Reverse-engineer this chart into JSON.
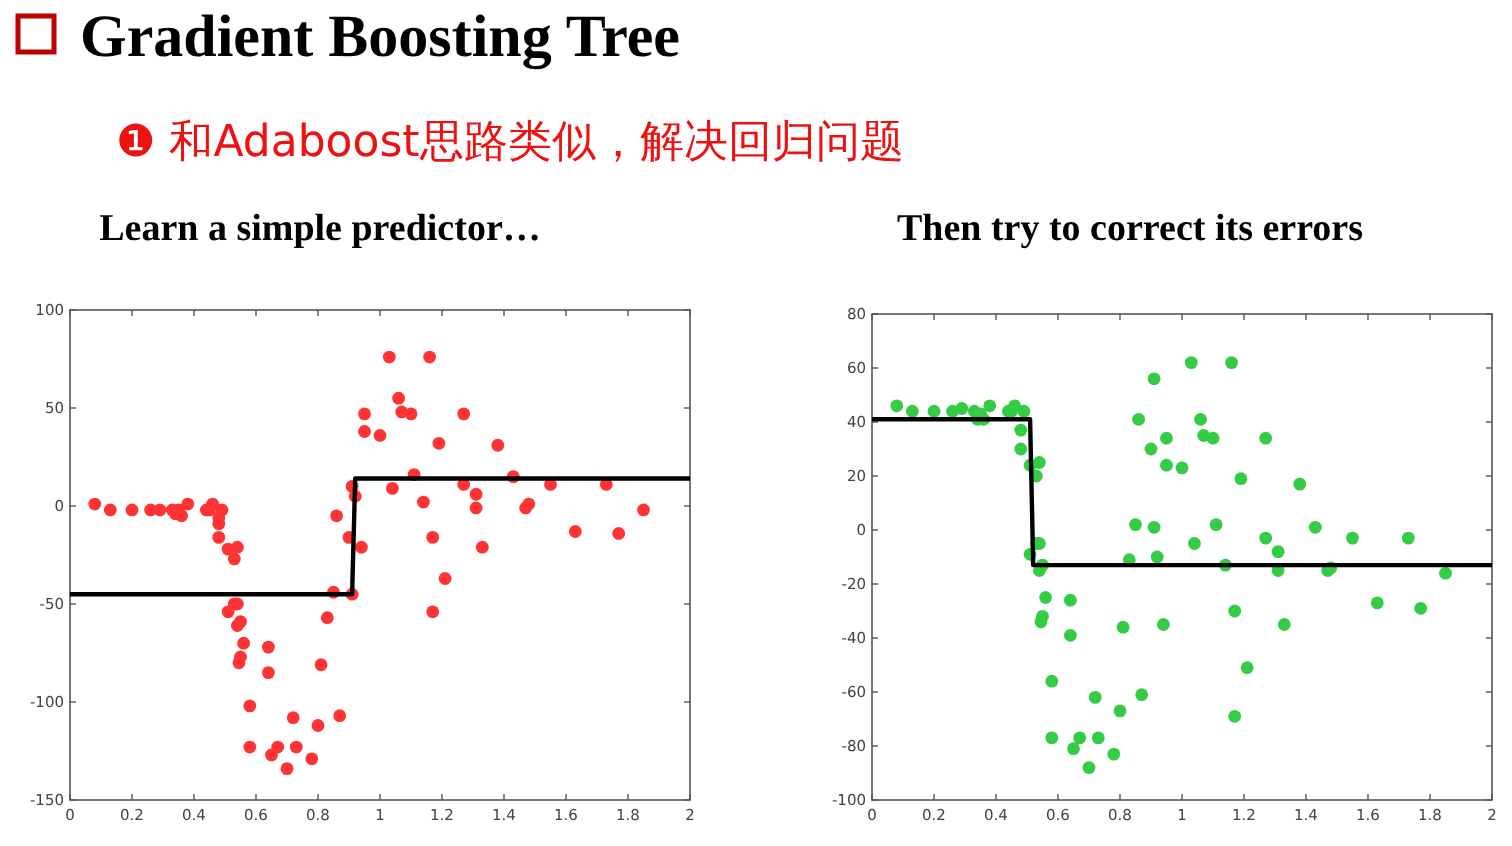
{
  "chart_data": [
    {
      "type": "other",
      "title": "Gradient Boosting Tree",
      "subtitle": "❶ 和Adaboost思路类似，解决回归问题"
    },
    {
      "type": "scatter",
      "title": "Learn a simple predictor…",
      "xlim": [
        0,
        2
      ],
      "xticks": [
        0,
        0.2,
        0.4,
        0.6,
        0.8,
        1,
        1.2,
        1.4,
        1.6,
        1.8,
        2
      ],
      "ylim": [
        -150,
        100
      ],
      "yticks": [
        -150,
        -100,
        -50,
        0,
        50,
        100
      ],
      "grid": false,
      "series": [
        {
          "type": "scatter",
          "marker": "circle",
          "color": "#ff3333",
          "x": [
            0.08,
            0.13,
            0.2,
            0.26,
            0.29,
            0.33,
            0.34,
            0.35,
            0.36,
            0.38,
            0.44,
            0.45,
            0.46,
            0.49,
            0.48,
            0.48,
            0.48,
            0.51,
            0.54,
            0.53,
            0.53,
            0.54,
            0.51,
            0.55,
            0.54,
            0.56,
            0.55,
            0.545,
            0.58,
            0.58,
            0.64,
            0.64,
            0.65,
            0.67,
            0.7,
            0.72,
            0.73,
            0.78,
            0.8,
            0.81,
            0.83,
            0.85,
            0.87,
            0.86,
            0.9,
            0.91,
            0.92,
            0.91,
            0.94,
            0.95,
            0.95,
            1.0,
            1.03,
            1.04,
            1.06,
            1.07,
            1.1,
            1.11,
            1.14,
            1.16,
            1.17,
            1.17,
            1.19,
            1.21,
            1.27,
            1.27,
            1.31,
            1.31,
            1.33,
            1.38,
            1.43,
            1.47,
            1.48,
            1.55,
            1.63,
            1.73,
            1.77,
            1.85
          ],
          "values": [
            1,
            -2,
            -2,
            -2,
            -2,
            -2,
            -4,
            -2,
            -5,
            1,
            -2,
            -2,
            1,
            -2,
            -6,
            -9,
            -16,
            -22,
            -21,
            -27,
            -50,
            -50,
            -54,
            -59,
            -61,
            -70,
            -77,
            -80,
            -102,
            -123,
            -72,
            -85,
            -127,
            -123,
            -134,
            -108,
            -123,
            -129,
            -112,
            -81,
            -57,
            -44,
            -107,
            -5,
            -16,
            10,
            5,
            -45,
            -21,
            38,
            47,
            36,
            76,
            9,
            55,
            48,
            47,
            16,
            2,
            76,
            -16,
            -54,
            32,
            -37,
            47,
            11,
            6,
            -1,
            -21,
            31,
            15,
            -1,
            1,
            11,
            -13,
            11,
            -14,
            -2
          ]
        },
        {
          "type": "line",
          "color": "#000000",
          "x": [
            0,
            0.91,
            0.92,
            2
          ],
          "values": [
            -45,
            -45,
            14,
            14
          ]
        }
      ]
    },
    {
      "type": "scatter",
      "title": "Then try to correct its errors",
      "xlim": [
        0,
        2
      ],
      "xticks": [
        0,
        0.2,
        0.4,
        0.6,
        0.8,
        1,
        1.2,
        1.4,
        1.6,
        1.8,
        2
      ],
      "ylim": [
        -100,
        80
      ],
      "yticks": [
        -100,
        -80,
        -60,
        -40,
        -20,
        0,
        20,
        40,
        60,
        80
      ],
      "grid": false,
      "series": [
        {
          "type": "scatter",
          "marker": "circle",
          "color": "#33cc44",
          "x": [
            0.08,
            0.13,
            0.2,
            0.26,
            0.29,
            0.33,
            0.34,
            0.35,
            0.36,
            0.38,
            0.44,
            0.45,
            0.46,
            0.49,
            0.48,
            0.48,
            0.51,
            0.54,
            0.53,
            0.51,
            0.53,
            0.54,
            0.55,
            0.54,
            0.56,
            0.55,
            0.545,
            0.58,
            0.58,
            0.64,
            0.64,
            0.65,
            0.67,
            0.7,
            0.72,
            0.73,
            0.78,
            0.8,
            0.81,
            0.83,
            0.85,
            0.87,
            0.86,
            0.9,
            0.91,
            0.91,
            0.92,
            0.94,
            0.95,
            0.95,
            1.0,
            1.03,
            1.04,
            1.06,
            1.07,
            1.1,
            1.11,
            1.14,
            1.16,
            1.17,
            1.17,
            1.19,
            1.21,
            1.27,
            1.27,
            1.31,
            1.31,
            1.33,
            1.38,
            1.43,
            1.47,
            1.48,
            1.55,
            1.63,
            1.73,
            1.77,
            1.85
          ],
          "values": [
            46,
            44,
            44,
            44,
            45,
            44,
            41,
            43,
            41,
            46,
            44,
            44,
            46,
            44,
            37,
            30,
            24,
            25,
            20,
            -9,
            -5,
            -5,
            -13,
            -15,
            -25,
            -32,
            -34,
            -56,
            -77,
            -26,
            -39,
            -81,
            -77,
            -88,
            -62,
            -77,
            -83,
            -67,
            -36,
            -11,
            2,
            -61,
            41,
            30,
            56,
            1,
            -10,
            -35,
            24,
            34,
            23,
            62,
            -5,
            41,
            35,
            34,
            2,
            -13,
            62,
            -30,
            -69,
            19,
            -51,
            34,
            -3,
            -8,
            -15,
            -35,
            17,
            1,
            -15,
            -14,
            -3,
            -27,
            -3,
            -29,
            -16
          ]
        },
        {
          "type": "line",
          "color": "#000000",
          "x": [
            0,
            0.51,
            0.52,
            2
          ],
          "values": [
            41,
            41,
            -13,
            -13
          ]
        }
      ]
    }
  ]
}
